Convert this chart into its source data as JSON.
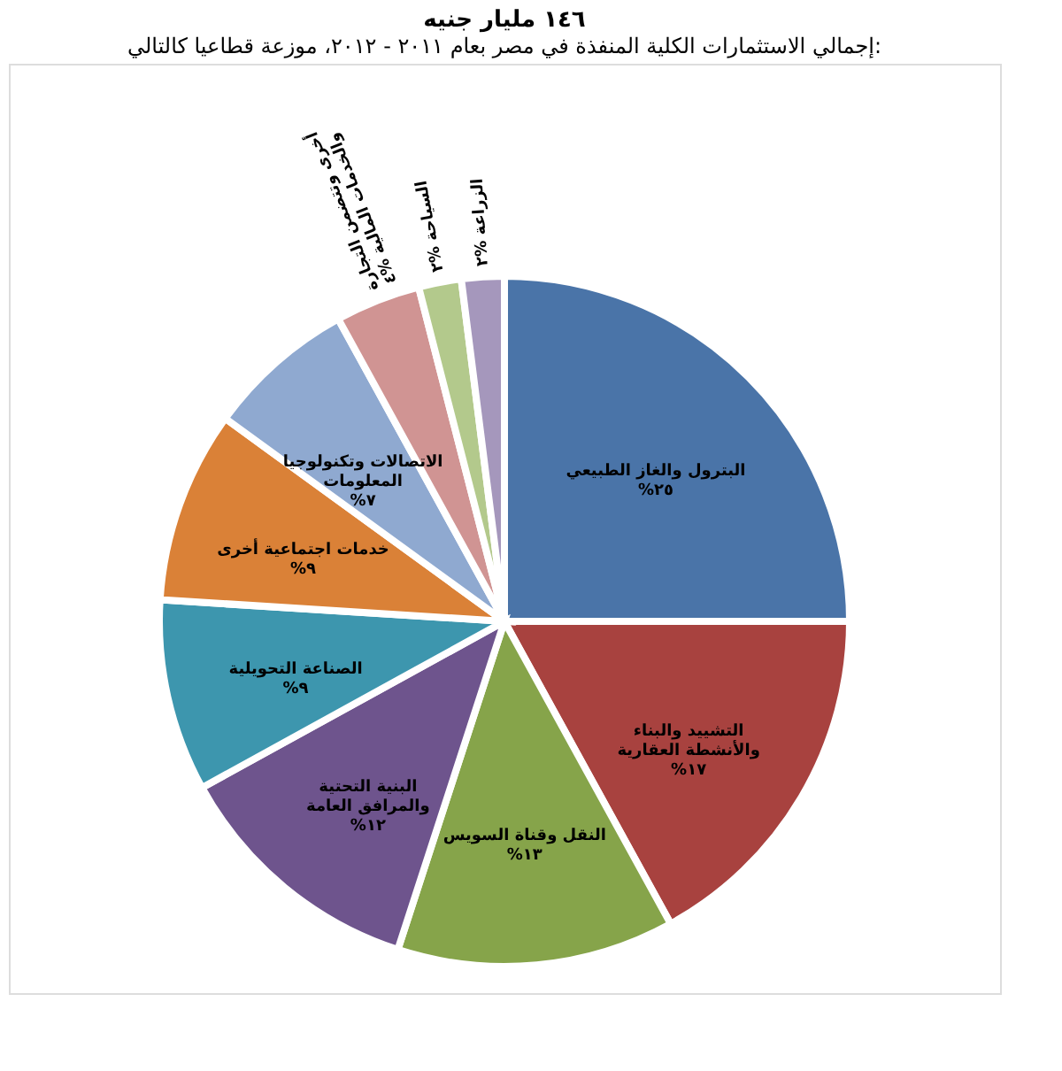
{
  "chart_data": {
    "type": "pie",
    "title": "١٤٦ مليار جنيه",
    "subtitle": "إجمالي الاستثمارات الكلية المنفذة في مصر بعام ٢٠١١ - ٢٠١٢، موزعة قطاعيا كالتالي:",
    "categories": [
      "البترول والغاز الطبيعي",
      "التشييد والبناء والأنشطة العقارية",
      "النقل وقناة السويس",
      "البنية التحتية والمرافق العامة",
      "الصناعة التحويلية",
      "خدمات اجتماعية أخرى",
      "الاتصالات وتكنولوجيا المعلومات",
      "أخرى وتتضمن التجارة والخدمات المالية",
      "السياحة",
      "الزراعة"
    ],
    "values": [
      25,
      17,
      13,
      12,
      9,
      9,
      7,
      4,
      2,
      2
    ],
    "value_labels": [
      "%٢٥",
      "%١٧",
      "%١٣",
      "%١٢",
      "%٩",
      "%٩",
      "%٧",
      "%٤",
      "%٢",
      "%٢"
    ],
    "colors": [
      "#4a74a8",
      "#a8423f",
      "#86a44a",
      "#6e548d",
      "#3d96ae",
      "#da8137",
      "#8fa9d0",
      "#d09493",
      "#b3c98c",
      "#a597bc"
    ],
    "legend": false
  }
}
